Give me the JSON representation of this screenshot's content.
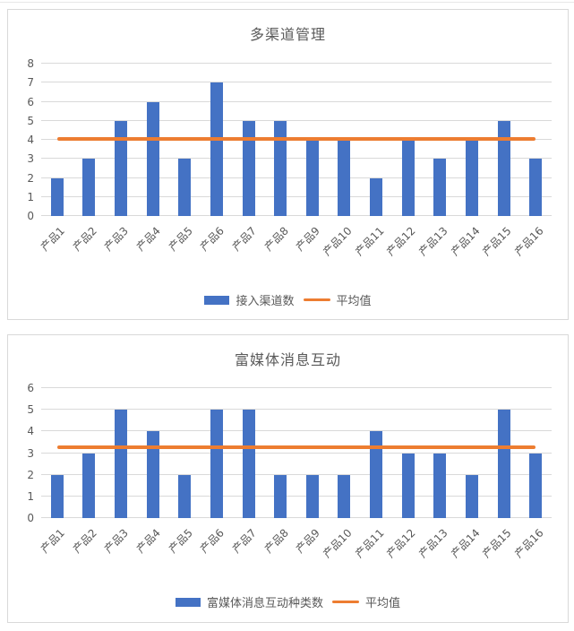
{
  "page": {
    "background": "#ffffff",
    "panel_border_color": "#d9d9d9",
    "gridline_color": "#d9d9d9",
    "text_color": "#595959"
  },
  "chart_data": [
    {
      "type": "bar",
      "title": "多渠道管理",
      "categories": [
        "产品1",
        "产品2",
        "产品3",
        "产品4",
        "产品5",
        "产品6",
        "产品7",
        "产品8",
        "产品9",
        "产品10",
        "产品11",
        "产品12",
        "产品13",
        "产品14",
        "产品15",
        "产品16"
      ],
      "series": [
        {
          "name": "接入渠道数",
          "type": "bar",
          "color": "#4472C4",
          "values": [
            2,
            3,
            5,
            6,
            3,
            7,
            5,
            5,
            4,
            4,
            2,
            4,
            3,
            4,
            5,
            3
          ]
        },
        {
          "name": "平均值",
          "type": "line",
          "color": "#ED7D31",
          "average_value": 4.0625
        }
      ],
      "ylim": [
        0,
        8
      ],
      "yticks": [
        0,
        1,
        2,
        3,
        4,
        5,
        6,
        7,
        8
      ],
      "grid": true,
      "legend_position": "bottom"
    },
    {
      "type": "bar",
      "title": "富媒体消息互动",
      "categories": [
        "产品1",
        "产品2",
        "产品3",
        "产品4",
        "产品5",
        "产品6",
        "产品7",
        "产品8",
        "产品9",
        "产品10",
        "产品11",
        "产品12",
        "产品13",
        "产品14",
        "产品15",
        "产品16"
      ],
      "series": [
        {
          "name": "富媒体消息互动种类数",
          "type": "bar",
          "color": "#4472C4",
          "values": [
            2,
            3,
            5,
            4,
            2,
            5,
            5,
            2,
            2,
            2,
            4,
            3,
            3,
            2,
            5,
            3
          ]
        },
        {
          "name": "平均值",
          "type": "line",
          "color": "#ED7D31",
          "average_value": 3.25
        }
      ],
      "ylim": [
        0,
        6
      ],
      "yticks": [
        0,
        1,
        2,
        3,
        4,
        5,
        6
      ],
      "grid": true,
      "legend_position": "bottom"
    }
  ]
}
